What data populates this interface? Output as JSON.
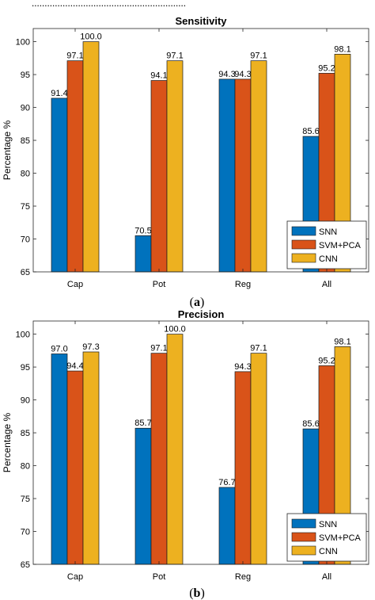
{
  "top_fragment": "............................................................",
  "colors": {
    "SNN": "#0072BD",
    "SVM+PCA": "#D95319",
    "CNN": "#EDB120"
  },
  "chart_data": [
    {
      "type": "bar",
      "title": "Sensitivity",
      "ylabel": "Percentage %",
      "xlabel": "",
      "ylim": [
        65,
        102
      ],
      "yticks": [
        65,
        70,
        75,
        80,
        85,
        90,
        95,
        100
      ],
      "categories": [
        "Cap",
        "Pot",
        "Reg",
        "All"
      ],
      "series": [
        {
          "name": "SNN",
          "values": [
            91.4,
            70.5,
            94.3,
            85.6
          ],
          "labels": [
            "91.4",
            "70.5",
            "94.3",
            "85.6"
          ]
        },
        {
          "name": "SVM+PCA",
          "values": [
            97.1,
            94.1,
            94.3,
            95.2
          ],
          "labels": [
            "97.1",
            "94.1",
            "94.3",
            "95.2"
          ]
        },
        {
          "name": "CNN",
          "values": [
            100.0,
            97.1,
            97.1,
            98.1
          ],
          "labels": [
            "100.0",
            "97.1",
            "97.1",
            "98.1"
          ]
        }
      ],
      "legend_position": "bottom-right",
      "grid": false,
      "caption": {
        "open": "(",
        "letter": "a",
        "close": ")"
      }
    },
    {
      "type": "bar",
      "title": "Precision",
      "ylabel": "Percentage %",
      "xlabel": "",
      "ylim": [
        65,
        102
      ],
      "yticks": [
        65,
        70,
        75,
        80,
        85,
        90,
        95,
        100
      ],
      "categories": [
        "Cap",
        "Pot",
        "Reg",
        "All"
      ],
      "series": [
        {
          "name": "SNN",
          "values": [
            97.0,
            85.7,
            76.7,
            85.6
          ],
          "labels": [
            "97.0",
            "85.7",
            "76.7",
            "85.6"
          ]
        },
        {
          "name": "SVM+PCA",
          "values": [
            94.4,
            97.1,
            94.3,
            95.2
          ],
          "labels": [
            "94.4",
            "97.1",
            "94.3",
            "95.2"
          ]
        },
        {
          "name": "CNN",
          "values": [
            97.3,
            100.0,
            97.1,
            98.1
          ],
          "labels": [
            "97.3",
            "100.0",
            "97.1",
            "98.1"
          ]
        }
      ],
      "legend_position": "bottom-right",
      "grid": false,
      "caption": {
        "open": "(",
        "letter": "b",
        "close": ")"
      }
    }
  ]
}
